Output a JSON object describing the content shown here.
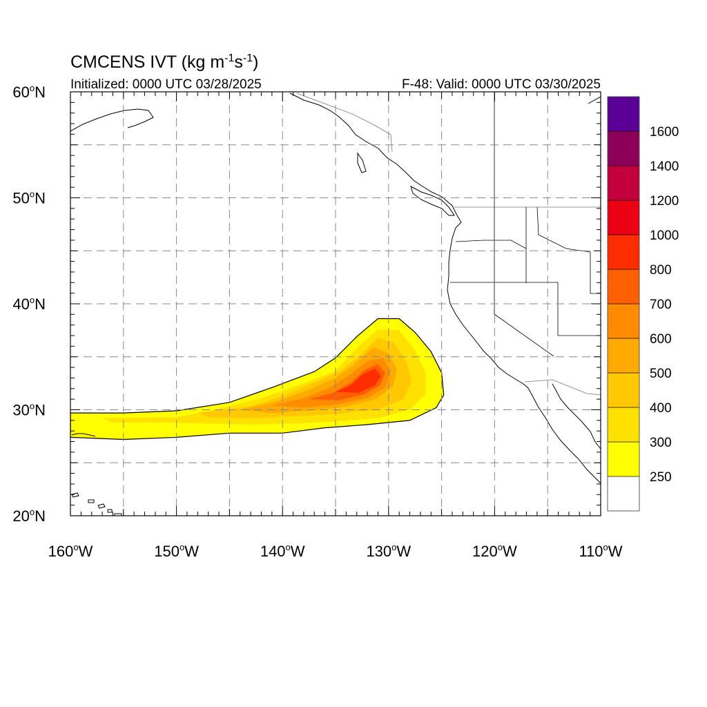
{
  "header": {
    "title_prefix": "CMCENS IVT (kg m",
    "title_exp1": "-1",
    "title_mid": "s",
    "title_exp2": "-1",
    "title_suffix": ")",
    "initialized": "Initialized: 0000 UTC 03/28/2025",
    "valid": "F-48: Valid: 0000 UTC 03/30/2025"
  },
  "map": {
    "lon_range": [
      -160,
      -110
    ],
    "lat_range": [
      20,
      60
    ],
    "grid_lon_step": 5,
    "grid_lat_step": 5,
    "grid_style": "dashed",
    "lat_labels": [
      {
        "lat": 60,
        "num": "60",
        "hemi": "N"
      },
      {
        "lat": 50,
        "num": "50",
        "hemi": "N"
      },
      {
        "lat": 40,
        "num": "40",
        "hemi": "N"
      },
      {
        "lat": 30,
        "num": "30",
        "hemi": "N"
      },
      {
        "lat": 20,
        "num": "20",
        "hemi": "N"
      }
    ],
    "lon_labels": [
      {
        "lon": -160,
        "num": "160",
        "hemi": "W"
      },
      {
        "lon": -150,
        "num": "150",
        "hemi": "W"
      },
      {
        "lon": -140,
        "num": "140",
        "hemi": "W"
      },
      {
        "lon": -130,
        "num": "130",
        "hemi": "W"
      },
      {
        "lon": -120,
        "num": "120",
        "hemi": "W"
      },
      {
        "lon": -110,
        "num": "110",
        "hemi": "W"
      }
    ]
  },
  "legend": {
    "colors": [
      "#ffffff",
      "#ffff00",
      "#ffe100",
      "#ffc800",
      "#ffaa00",
      "#ff8c00",
      "#ff5f00",
      "#ff2d00",
      "#eb0014",
      "#c3003c",
      "#8c005a",
      "#5a0096"
    ],
    "tick_labels": [
      "250",
      "300",
      "400",
      "500",
      "600",
      "700",
      "800",
      "1000",
      "1200",
      "1400",
      "1600"
    ]
  },
  "field": {
    "contours": [
      {
        "level": "250",
        "color": "#ffff00",
        "points": [
          [
            -160,
            29.7
          ],
          [
            -155,
            29.7
          ],
          [
            -150,
            29.9
          ],
          [
            -145,
            30.7
          ],
          [
            -141,
            32.1
          ],
          [
            -137,
            33.6
          ],
          [
            -135,
            34.9
          ],
          [
            -133,
            36.9
          ],
          [
            -131,
            38.6
          ],
          [
            -129,
            38.6
          ],
          [
            -127.5,
            37.3
          ],
          [
            -126,
            35.5
          ],
          [
            -125,
            33.5
          ],
          [
            -124.8,
            31.4
          ],
          [
            -125.5,
            30.2
          ],
          [
            -128,
            29.0
          ],
          [
            -132,
            28.6
          ],
          [
            -136,
            28.3
          ],
          [
            -140,
            27.8
          ],
          [
            -145,
            27.8
          ],
          [
            -150,
            27.4
          ],
          [
            -155,
            27.2
          ],
          [
            -160,
            27.4
          ]
        ]
      },
      {
        "level": "300",
        "color": "#ffe100",
        "points": [
          [
            -157,
            29.2
          ],
          [
            -150,
            29.3
          ],
          [
            -146,
            30.1
          ],
          [
            -142,
            31.1
          ],
          [
            -138,
            32.5
          ],
          [
            -135,
            33.7
          ],
          [
            -133,
            35.8
          ],
          [
            -131,
            37.6
          ],
          [
            -129,
            37.5
          ],
          [
            -127.5,
            35.6
          ],
          [
            -126.5,
            33.5
          ],
          [
            -126.5,
            31.5
          ],
          [
            -128,
            30.0
          ],
          [
            -131,
            29.2
          ],
          [
            -135,
            28.9
          ],
          [
            -139,
            28.7
          ],
          [
            -143,
            28.6
          ],
          [
            -147,
            28.7
          ],
          [
            -151,
            28.8
          ],
          [
            -156,
            28.8
          ]
        ]
      },
      {
        "level": "400",
        "color": "#ffc800",
        "points": [
          [
            -148,
            29.7
          ],
          [
            -143,
            30.3
          ],
          [
            -140,
            31.3
          ],
          [
            -137,
            32.6
          ],
          [
            -134.5,
            33.7
          ],
          [
            -132.5,
            35.3
          ],
          [
            -131,
            36.8
          ],
          [
            -129.5,
            36.3
          ],
          [
            -128.3,
            34.5
          ],
          [
            -127.8,
            32.7
          ],
          [
            -128.6,
            31.0
          ],
          [
            -131,
            30.0
          ],
          [
            -135,
            29.6
          ],
          [
            -139,
            29.4
          ],
          [
            -143,
            29.2
          ],
          [
            -147,
            29.3
          ]
        ]
      },
      {
        "level": "500",
        "color": "#ffaa00",
        "points": [
          [
            -144,
            30.0
          ],
          [
            -140.5,
            30.8
          ],
          [
            -137.5,
            31.9
          ],
          [
            -135,
            33.0
          ],
          [
            -133,
            34.5
          ],
          [
            -131.4,
            35.9
          ],
          [
            -130,
            35.3
          ],
          [
            -129.2,
            33.8
          ],
          [
            -129.6,
            32.2
          ],
          [
            -131.2,
            31.0
          ],
          [
            -134,
            30.3
          ],
          [
            -137.5,
            29.9
          ],
          [
            -141,
            29.7
          ]
        ]
      },
      {
        "level": "600",
        "color": "#ff8c00",
        "points": [
          [
            -141,
            30.4
          ],
          [
            -138,
            31.1
          ],
          [
            -135.5,
            32.1
          ],
          [
            -133.5,
            33.4
          ],
          [
            -132,
            34.6
          ],
          [
            -130.5,
            34.9
          ],
          [
            -129.8,
            33.6
          ],
          [
            -130.3,
            32.1
          ],
          [
            -132,
            31.1
          ],
          [
            -134.8,
            30.5
          ],
          [
            -138,
            30.2
          ]
        ]
      },
      {
        "level": "700",
        "color": "#ff5f00",
        "points": [
          [
            -137.5,
            31.0
          ],
          [
            -135.2,
            31.6
          ],
          [
            -133.5,
            32.6
          ],
          [
            -132.2,
            33.8
          ],
          [
            -131,
            34.3
          ],
          [
            -130.3,
            33.5
          ],
          [
            -130.8,
            32.3
          ],
          [
            -132.4,
            31.4
          ],
          [
            -134.7,
            30.9
          ]
        ]
      },
      {
        "level": "800",
        "color": "#ff2d00",
        "points": [
          [
            -135,
            31.7
          ],
          [
            -133.6,
            32.3
          ],
          [
            -132.5,
            33.3
          ],
          [
            -131.3,
            33.9
          ],
          [
            -130.7,
            33.2
          ],
          [
            -131.3,
            32.3
          ],
          [
            -132.8,
            31.6
          ]
        ]
      }
    ]
  }
}
